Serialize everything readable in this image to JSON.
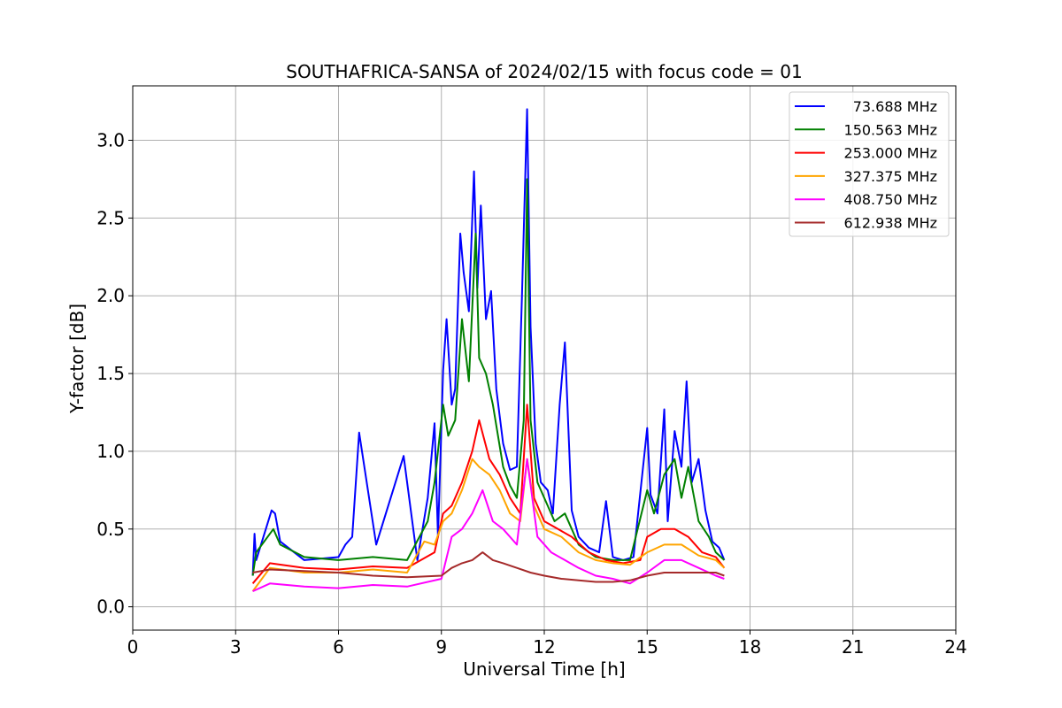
{
  "chart_data": {
    "type": "line",
    "title": "SOUTHAFRICA-SANSA of 2024/02/15 with focus code = 01",
    "xlabel": "Universal Time [h]",
    "ylabel": "Y-factor [dB]",
    "xlim": [
      0,
      24
    ],
    "ylim": [
      -0.15,
      3.35
    ],
    "x_ticks": [
      0,
      3,
      6,
      9,
      12,
      15,
      18,
      21,
      24
    ],
    "y_ticks": [
      0.0,
      0.5,
      1.0,
      1.5,
      2.0,
      2.5,
      3.0
    ],
    "x_tick_labels": [
      "0",
      "3",
      "6",
      "9",
      "12",
      "15",
      "18",
      "21",
      "24"
    ],
    "y_tick_labels": [
      "0.0",
      "0.5",
      "1.0",
      "1.5",
      "2.0",
      "2.5",
      "3.0"
    ],
    "grid": true,
    "legend_position": "top-right",
    "series": [
      {
        "name": "73.688 MHz",
        "color": "#0000ff",
        "x": [
          3.5,
          3.55,
          3.6,
          4.05,
          4.15,
          4.3,
          5.0,
          6.0,
          6.2,
          6.4,
          6.6,
          7.1,
          7.9,
          8.3,
          8.6,
          8.8,
          8.9,
          9.05,
          9.15,
          9.3,
          9.4,
          9.55,
          9.65,
          9.8,
          9.95,
          10.05,
          10.15,
          10.3,
          10.45,
          10.6,
          10.8,
          11.0,
          11.2,
          11.35,
          11.5,
          11.6,
          11.75,
          11.9,
          12.1,
          12.25,
          12.45,
          12.6,
          12.8,
          13.0,
          13.3,
          13.6,
          13.8,
          14.0,
          14.3,
          14.6,
          15.0,
          15.1,
          15.3,
          15.5,
          15.6,
          15.8,
          16.0,
          16.15,
          16.3,
          16.5,
          16.7,
          16.9,
          17.1,
          17.25
        ],
        "y": [
          0.2,
          0.47,
          0.3,
          0.62,
          0.6,
          0.42,
          0.3,
          0.32,
          0.4,
          0.45,
          1.12,
          0.4,
          0.97,
          0.3,
          0.7,
          1.18,
          0.45,
          1.52,
          1.85,
          1.3,
          1.4,
          2.4,
          2.15,
          1.9,
          2.8,
          2.05,
          2.58,
          1.85,
          2.03,
          1.4,
          1.05,
          0.88,
          0.9,
          2.0,
          3.2,
          1.8,
          1.05,
          0.8,
          0.75,
          0.6,
          1.3,
          1.7,
          0.62,
          0.45,
          0.38,
          0.35,
          0.68,
          0.32,
          0.3,
          0.32,
          1.15,
          0.72,
          0.6,
          1.27,
          0.55,
          1.13,
          0.9,
          1.45,
          0.8,
          0.95,
          0.62,
          0.42,
          0.38,
          0.3
        ]
      },
      {
        "name": "150.563 MHz",
        "color": "#008000",
        "x": [
          3.5,
          3.6,
          4.1,
          4.3,
          5.0,
          6.0,
          7.0,
          8.0,
          8.6,
          8.8,
          9.05,
          9.2,
          9.4,
          9.6,
          9.8,
          10.0,
          10.1,
          10.3,
          10.5,
          10.8,
          11.0,
          11.2,
          11.4,
          11.5,
          11.6,
          11.8,
          12.0,
          12.3,
          12.6,
          13.0,
          13.5,
          14.0,
          14.5,
          15.0,
          15.2,
          15.5,
          15.8,
          16.0,
          16.2,
          16.5,
          16.8,
          17.0,
          17.25
        ],
        "y": [
          0.2,
          0.35,
          0.5,
          0.4,
          0.32,
          0.3,
          0.32,
          0.3,
          0.55,
          0.8,
          1.3,
          1.1,
          1.2,
          1.85,
          1.45,
          2.4,
          1.6,
          1.5,
          1.3,
          0.9,
          0.78,
          0.7,
          1.2,
          2.75,
          1.2,
          0.8,
          0.7,
          0.55,
          0.6,
          0.4,
          0.32,
          0.3,
          0.3,
          0.75,
          0.6,
          0.85,
          0.95,
          0.7,
          0.9,
          0.55,
          0.45,
          0.35,
          0.3
        ]
      },
      {
        "name": "253.000 MHz",
        "color": "#ff0000",
        "x": [
          3.5,
          4.0,
          5.0,
          6.0,
          7.0,
          8.0,
          8.8,
          9.05,
          9.3,
          9.6,
          9.9,
          10.1,
          10.4,
          10.7,
          11.0,
          11.3,
          11.5,
          11.7,
          12.0,
          12.4,
          12.8,
          13.3,
          13.8,
          14.3,
          14.8,
          15.0,
          15.4,
          15.8,
          16.2,
          16.6,
          17.0,
          17.25
        ],
        "y": [
          0.15,
          0.28,
          0.25,
          0.24,
          0.26,
          0.25,
          0.35,
          0.6,
          0.65,
          0.8,
          1.0,
          1.2,
          0.95,
          0.85,
          0.7,
          0.6,
          1.3,
          0.7,
          0.55,
          0.5,
          0.45,
          0.35,
          0.3,
          0.28,
          0.3,
          0.45,
          0.5,
          0.5,
          0.45,
          0.35,
          0.32,
          0.25
        ]
      },
      {
        "name": "327.375 MHz",
        "color": "#ffa500",
        "x": [
          3.5,
          4.0,
          5.0,
          6.0,
          7.0,
          8.0,
          8.5,
          8.8,
          9.05,
          9.3,
          9.6,
          9.9,
          10.1,
          10.4,
          10.7,
          11.0,
          11.3,
          11.5,
          11.7,
          12.0,
          12.5,
          13.0,
          13.5,
          14.0,
          14.5,
          15.0,
          15.5,
          16.0,
          16.5,
          17.0,
          17.25
        ],
        "y": [
          0.1,
          0.25,
          0.22,
          0.22,
          0.24,
          0.22,
          0.42,
          0.4,
          0.55,
          0.6,
          0.75,
          0.95,
          0.9,
          0.85,
          0.75,
          0.6,
          0.55,
          0.95,
          0.65,
          0.5,
          0.45,
          0.35,
          0.3,
          0.28,
          0.27,
          0.35,
          0.4,
          0.4,
          0.33,
          0.3,
          0.25
        ]
      },
      {
        "name": "408.750 MHz",
        "color": "#ff00ff",
        "x": [
          3.5,
          4.0,
          5.0,
          6.0,
          7.0,
          8.0,
          9.0,
          9.3,
          9.6,
          9.9,
          10.2,
          10.5,
          10.8,
          11.2,
          11.5,
          11.8,
          12.2,
          12.6,
          13.0,
          13.5,
          14.0,
          14.5,
          15.0,
          15.5,
          16.0,
          16.5,
          17.0,
          17.25
        ],
        "y": [
          0.1,
          0.15,
          0.13,
          0.12,
          0.14,
          0.13,
          0.18,
          0.45,
          0.5,
          0.6,
          0.75,
          0.55,
          0.5,
          0.4,
          0.95,
          0.45,
          0.35,
          0.3,
          0.25,
          0.2,
          0.18,
          0.15,
          0.22,
          0.3,
          0.3,
          0.25,
          0.2,
          0.18
        ]
      },
      {
        "name": "612.938 MHz",
        "color": "#a52a2a",
        "x": [
          3.5,
          4.0,
          5.0,
          6.0,
          7.0,
          8.0,
          9.0,
          9.3,
          9.6,
          9.9,
          10.2,
          10.5,
          10.8,
          11.2,
          11.6,
          12.0,
          12.5,
          13.0,
          13.5,
          14.0,
          14.5,
          15.0,
          15.5,
          16.0,
          16.5,
          17.0,
          17.25
        ],
        "y": [
          0.22,
          0.24,
          0.23,
          0.22,
          0.2,
          0.19,
          0.2,
          0.25,
          0.28,
          0.3,
          0.35,
          0.3,
          0.28,
          0.25,
          0.22,
          0.2,
          0.18,
          0.17,
          0.16,
          0.16,
          0.17,
          0.2,
          0.22,
          0.22,
          0.22,
          0.22,
          0.2
        ]
      }
    ]
  }
}
